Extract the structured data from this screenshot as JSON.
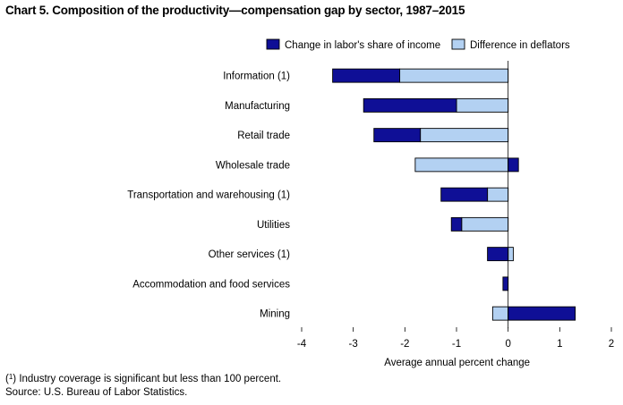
{
  "chart_data": {
    "type": "bar",
    "orientation": "horizontal",
    "stacked": true,
    "title": "Chart 5. Composition of the productivity—compensation gap by sector, 1987–2015",
    "xlabel": "Average annual percent change",
    "ylabel": "",
    "xlim": [
      -4,
      2
    ],
    "xticks": [
      -4,
      -3,
      -2,
      -1,
      0,
      1,
      2
    ],
    "grid": false,
    "legend_position": "top-right",
    "categories": [
      "Information (1)",
      "Manufacturing",
      "Retail trade",
      "Wholesale trade",
      "Transportation and warehousing (1)",
      "Utilities",
      "Other services (1)",
      "Accommodation and food services",
      "Mining"
    ],
    "series": [
      {
        "name": "Difference in deflators",
        "color": "#b3d1f2",
        "values": [
          -2.1,
          -1.0,
          -1.7,
          -1.8,
          -0.4,
          -0.9,
          0.1,
          0.0,
          -0.3
        ]
      },
      {
        "name": "Change in labor's share of income",
        "color": "#0f0f96",
        "values": [
          -1.3,
          -1.8,
          -0.9,
          0.2,
          -0.9,
          -0.2,
          -0.4,
          -0.1,
          1.3
        ]
      }
    ],
    "legend_order": [
      "Change in labor's share of income",
      "Difference in deflators"
    ],
    "footnote_mark": "1",
    "footnote_text": " Industry coverage is significant but less than 100 percent.",
    "source": "Source: U.S. Bureau of Labor Statistics."
  }
}
